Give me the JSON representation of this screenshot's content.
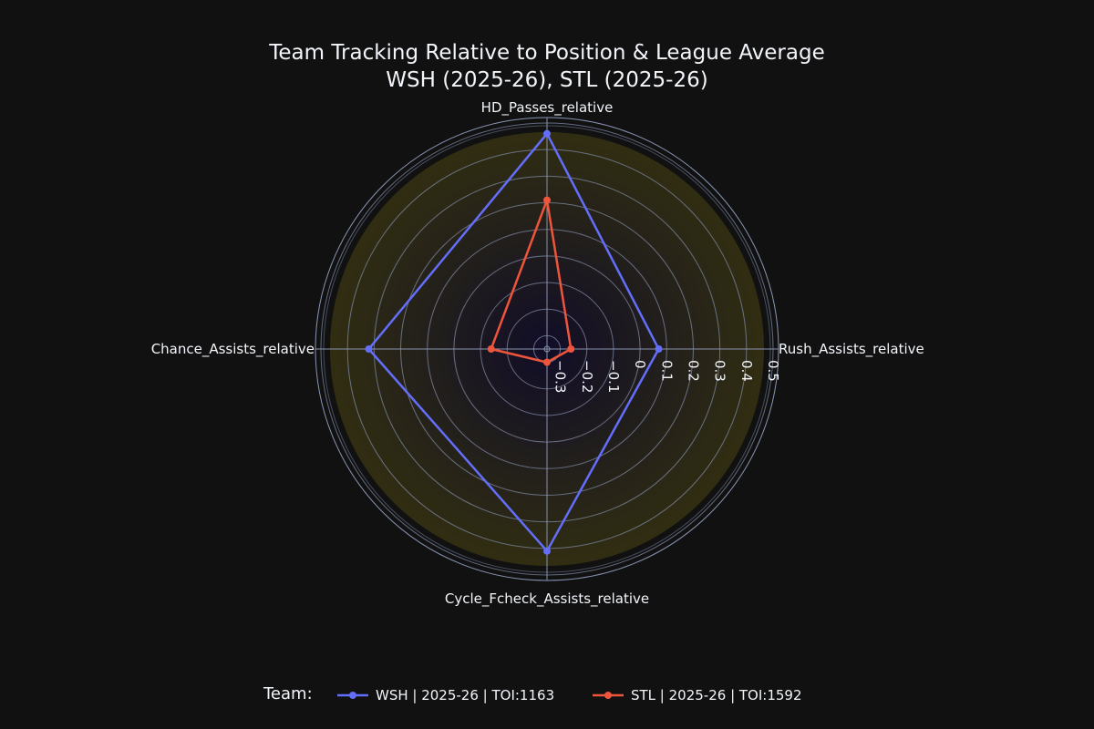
{
  "chart_data": {
    "type": "radar",
    "title_lines": [
      "Team Tracking Relative to Position & League Average",
      "WSH (2025-26), STL (2025-26)"
    ],
    "axes": [
      "HD_Passes_relative",
      "Rush_Assists_relative",
      "Cycle_Fcheck_Assists_relative",
      "Chance_Assists_relative"
    ],
    "radial_range": [
      -0.35,
      0.5
    ],
    "radial_ticks": [
      -0.3,
      -0.2,
      -0.1,
      0,
      0.1,
      0.2,
      0.3,
      0.4,
      0.5
    ],
    "radial_tick_labels": [
      "−0.3",
      "−0.2",
      "−0.1",
      "0",
      "0.1",
      "0.2",
      "0.3",
      "0.4",
      "0.5"
    ],
    "grid": true,
    "legend": {
      "title": "Team:",
      "placement": "bottom"
    },
    "series": [
      {
        "name": "WSH | 2025-26 | TOI:1163",
        "color": "#636efa",
        "values": [
          0.46,
          0.07,
          0.41,
          0.32
        ]
      },
      {
        "name": "STL | 2025-26 | TOI:1592",
        "color": "#ef553b",
        "values": [
          0.21,
          -0.26,
          -0.3,
          -0.14
        ]
      }
    ]
  }
}
